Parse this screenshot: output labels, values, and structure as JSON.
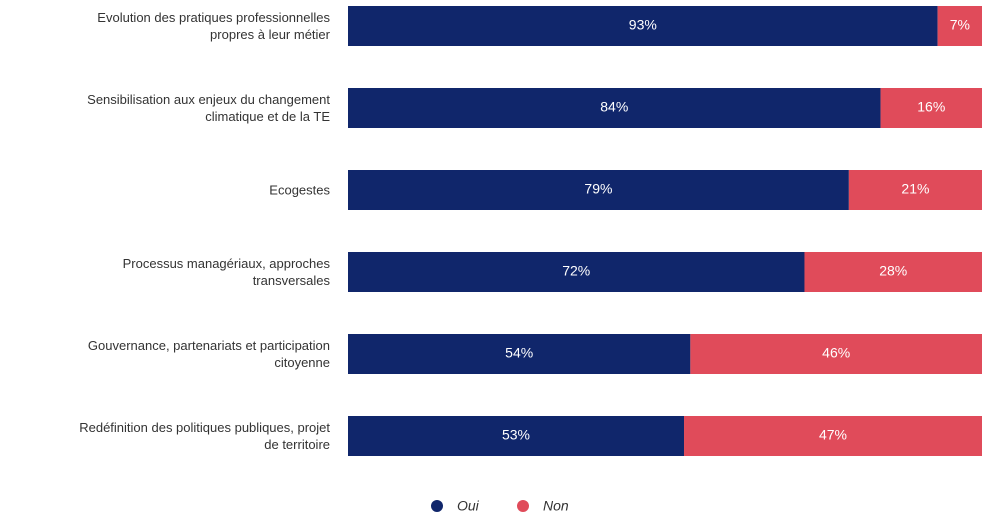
{
  "chart_data": {
    "type": "stacked-bar-horizontal",
    "categories": [
      "Evolution des pratiques professionnelles\npropres à leur métier",
      "Sensibilisation aux enjeux du changement\nclimatique et de la TE",
      "Ecogestes",
      "Processus managériaux, approches\ntransversales",
      "Gouvernance, partenariats et participation\ncitoyenne",
      "Redéfinition des politiques publiques, projet\nde territoire"
    ],
    "xlim": [
      0,
      100
    ],
    "series": [
      {
        "name": "Oui",
        "color": "#10266b",
        "values": [
          93,
          84,
          79,
          72,
          54,
          53
        ],
        "value_labels": [
          "93%",
          "84%",
          "79%",
          "72%",
          "54%",
          "53%"
        ]
      },
      {
        "name": "Non",
        "color": "#e04b5a",
        "values": [
          7,
          16,
          21,
          28,
          46,
          47
        ],
        "value_labels": [
          "7%",
          "16%",
          "21%",
          "28%",
          "46%",
          "47%"
        ]
      }
    ]
  }
}
